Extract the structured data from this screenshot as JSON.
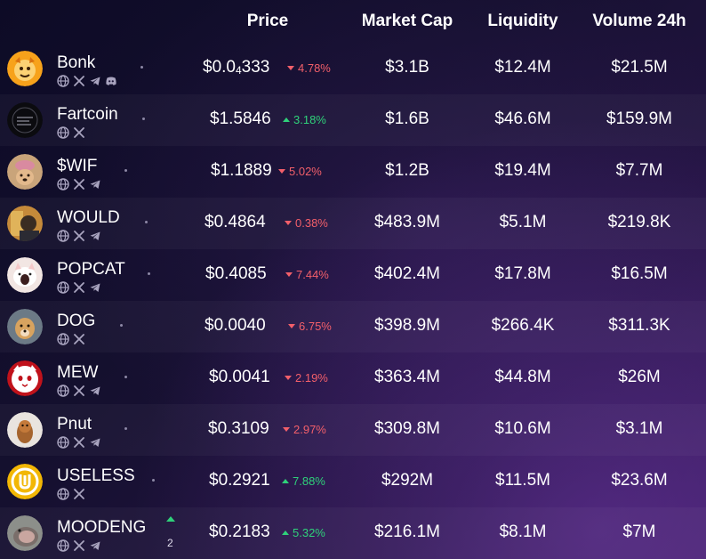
{
  "header": {
    "price": "Price",
    "market_cap": "Market Cap",
    "liquidity": "Liquidity",
    "volume": "Volume 24h"
  },
  "colors": {
    "up": "#2fd17a",
    "down": "#f25f6a",
    "background": "#15102f"
  },
  "tokens": [
    {
      "name": "Bonk",
      "price_main": "$0.0",
      "price_sub": "4",
      "price_rest": "333",
      "change": "4.78%",
      "direction": "down",
      "market_cap": "$3.1B",
      "liquidity": "$12.4M",
      "volume": "$21.5M",
      "socials": [
        "globe-icon",
        "x-icon",
        "telegram-icon",
        "discord-icon"
      ]
    },
    {
      "name": "Fartcoin",
      "price_main": "$1.5846",
      "change": "3.18%",
      "direction": "up",
      "market_cap": "$1.6B",
      "liquidity": "$46.6M",
      "volume": "$159.9M",
      "socials": [
        "globe-icon",
        "x-icon"
      ]
    },
    {
      "name": "$WIF",
      "price_main": "$1.1889",
      "change": "5.02%",
      "direction": "down",
      "market_cap": "$1.2B",
      "liquidity": "$19.4M",
      "volume": "$7.7M",
      "socials": [
        "globe-icon",
        "x-icon",
        "telegram-icon"
      ]
    },
    {
      "name": "WOULD",
      "price_main": "$0.4864",
      "change": "0.38%",
      "direction": "down",
      "market_cap": "$483.9M",
      "liquidity": "$5.1M",
      "volume": "$219.8K",
      "socials": [
        "globe-icon",
        "x-icon",
        "telegram-icon"
      ]
    },
    {
      "name": "POPCAT",
      "price_main": "$0.4085",
      "change": "7.44%",
      "direction": "down",
      "market_cap": "$402.4M",
      "liquidity": "$17.8M",
      "volume": "$16.5M",
      "socials": [
        "globe-icon",
        "x-icon",
        "telegram-icon"
      ]
    },
    {
      "name": "DOG",
      "price_main": "$0.0040",
      "change": "6.75%",
      "direction": "down",
      "market_cap": "$398.9M",
      "liquidity": "$266.4K",
      "volume": "$311.3K",
      "socials": [
        "globe-icon",
        "x-icon"
      ]
    },
    {
      "name": "MEW",
      "price_main": "$0.0041",
      "change": "2.19%",
      "direction": "down",
      "market_cap": "$363.4M",
      "liquidity": "$44.8M",
      "volume": "$26M",
      "socials": [
        "globe-icon",
        "x-icon",
        "telegram-icon"
      ]
    },
    {
      "name": "Pnut",
      "price_main": "$0.3109",
      "change": "2.97%",
      "direction": "down",
      "market_cap": "$309.8M",
      "liquidity": "$10.6M",
      "volume": "$3.1M",
      "socials": [
        "globe-icon",
        "x-icon",
        "telegram-icon"
      ]
    },
    {
      "name": "USELESS",
      "price_main": "$0.2921",
      "change": "7.88%",
      "direction": "up",
      "market_cap": "$292M",
      "liquidity": "$11.5M",
      "volume": "$23.6M",
      "socials": [
        "globe-icon",
        "x-icon"
      ]
    },
    {
      "name": "MOODENG",
      "price_main": "$0.2183",
      "change": "5.32%",
      "direction": "up",
      "market_cap": "$216.1M",
      "liquidity": "$8.1M",
      "volume": "$7M",
      "socials": [
        "globe-icon",
        "x-icon",
        "telegram-icon"
      ],
      "rank_change": "2"
    }
  ]
}
